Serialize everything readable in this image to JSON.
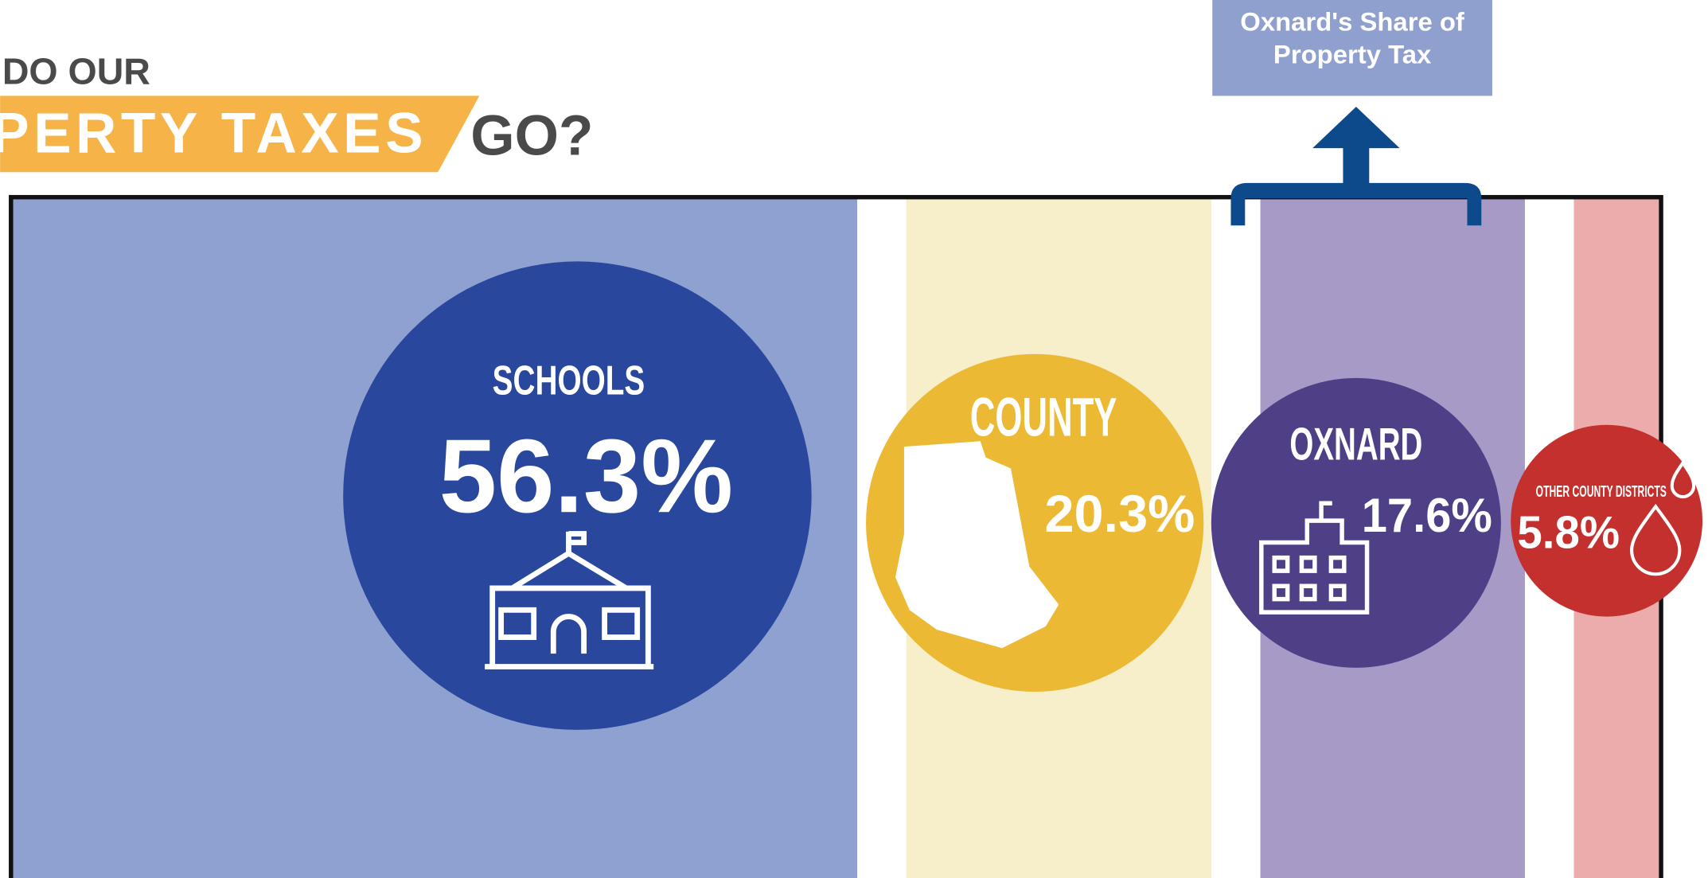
{
  "chart_data": {
    "type": "bar",
    "title_lines": [
      "DO OUR",
      "PERTY TAXES",
      "GO?"
    ],
    "annotation": "Oxnard's Share of Property Tax",
    "categories": [
      "SCHOOLS",
      "COUNTY",
      "OXNARD",
      "OTHER COUNTY DISTRICTS"
    ],
    "values": [
      56.3,
      20.3,
      17.6,
      5.8
    ],
    "value_labels": [
      "56.3%",
      "20.3%",
      "17.6%",
      "5.8%"
    ],
    "colors": [
      "#29479c",
      "#ecb935",
      "#4f3f87",
      "#c4302d"
    ]
  }
}
